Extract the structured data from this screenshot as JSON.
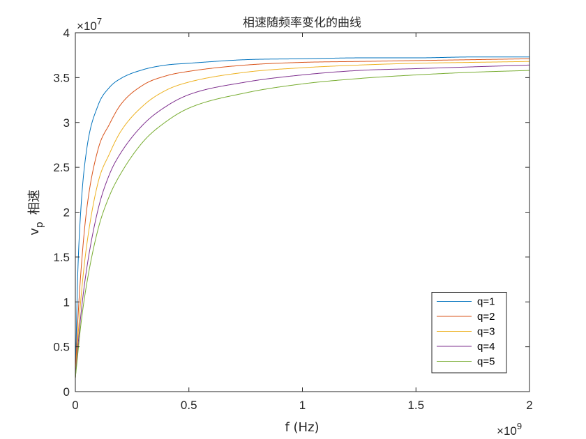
{
  "chart_data": {
    "type": "line",
    "title": "相速随频率变化的曲线",
    "xlabel": "f  (Hz)",
    "ylabel_main": "v",
    "ylabel_sub": "p",
    "ylabel_cjk": "相速",
    "xlim": [
      0,
      2
    ],
    "ylim": [
      0,
      4
    ],
    "x_multiplier": {
      "base": "10",
      "exp": "9"
    },
    "y_multiplier": {
      "base": "10",
      "exp": "7"
    },
    "x_ticks": [
      0,
      0.5,
      1,
      1.5,
      2
    ],
    "x_tick_labels": [
      "0",
      "0.5",
      "1",
      "1.5",
      "2"
    ],
    "y_ticks": [
      0,
      0.5,
      1,
      1.5,
      2,
      2.5,
      3,
      3.5,
      4
    ],
    "y_tick_labels": [
      "0",
      "0.5",
      "1",
      "1.5",
      "2",
      "2.5",
      "3",
      "3.5",
      "4"
    ],
    "grid": false,
    "legend_position": "bottom-right",
    "series": [
      {
        "name": "q=1",
        "color": "#0072BD",
        "x": [
          0,
          0.01,
          0.025,
          0.05,
          0.1,
          0.15,
          0.2,
          0.3,
          0.4,
          0.5,
          0.75,
          1.0,
          1.25,
          1.5,
          1.75,
          2.0
        ],
        "y": [
          0.15,
          1.26,
          2.06,
          2.7,
          3.19,
          3.39,
          3.49,
          3.59,
          3.64,
          3.66,
          3.7,
          3.71,
          3.72,
          3.72,
          3.73,
          3.73
        ]
      },
      {
        "name": "q=2",
        "color": "#D95319",
        "x": [
          0,
          0.01,
          0.025,
          0.05,
          0.1,
          0.15,
          0.2,
          0.3,
          0.4,
          0.5,
          0.75,
          1.0,
          1.25,
          1.5,
          1.75,
          2.0
        ],
        "y": [
          0.15,
          0.74,
          1.35,
          2.03,
          2.7,
          2.98,
          3.2,
          3.42,
          3.52,
          3.57,
          3.64,
          3.67,
          3.68,
          3.69,
          3.7,
          3.71
        ]
      },
      {
        "name": "q=3",
        "color": "#EDB120",
        "x": [
          0,
          0.01,
          0.025,
          0.05,
          0.1,
          0.15,
          0.2,
          0.3,
          0.4,
          0.5,
          0.75,
          1.0,
          1.25,
          1.5,
          1.75,
          2.0
        ],
        "y": [
          0.15,
          0.55,
          1.05,
          1.63,
          2.33,
          2.65,
          2.9,
          3.19,
          3.36,
          3.45,
          3.56,
          3.61,
          3.64,
          3.66,
          3.67,
          3.68
        ]
      },
      {
        "name": "q=4",
        "color": "#7E2F8E",
        "x": [
          0,
          0.01,
          0.025,
          0.05,
          0.1,
          0.15,
          0.2,
          0.3,
          0.4,
          0.5,
          0.75,
          1.0,
          1.25,
          1.5,
          1.75,
          2.0
        ],
        "y": [
          0.15,
          0.46,
          0.87,
          1.37,
          2.03,
          2.42,
          2.66,
          2.98,
          3.18,
          3.31,
          3.45,
          3.53,
          3.58,
          3.6,
          3.62,
          3.64
        ]
      },
      {
        "name": "q=5",
        "color": "#77AC30",
        "x": [
          0,
          0.01,
          0.025,
          0.05,
          0.1,
          0.15,
          0.2,
          0.3,
          0.4,
          0.5,
          0.75,
          1.0,
          1.25,
          1.5,
          1.75,
          2.0
        ],
        "y": [
          0.15,
          0.4,
          0.76,
          1.2,
          1.81,
          2.18,
          2.43,
          2.79,
          3.01,
          3.16,
          3.33,
          3.43,
          3.49,
          3.53,
          3.56,
          3.58
        ]
      }
    ]
  }
}
